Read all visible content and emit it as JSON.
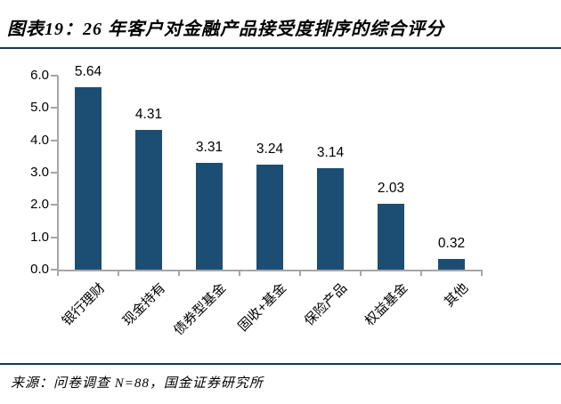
{
  "figure": {
    "title": "图表19：26 年客户对金融产品接受度排序的综合评分",
    "source": "来源：问卷调查 N=88，国金证券研究所"
  },
  "colors": {
    "bar": "#1C4E74",
    "rule": "#17375E",
    "axis": "#A6A6A6",
    "text": "#000000"
  },
  "chart_data": {
    "type": "bar",
    "title": "26 年客户对金融产品接受度排序的综合评分",
    "categories": [
      "银行理财",
      "现金持有",
      "债券型基金",
      "固收+基金",
      "保险产品",
      "权益基金",
      "其他"
    ],
    "values": [
      5.64,
      4.31,
      3.31,
      3.24,
      3.14,
      2.03,
      0.32
    ],
    "data_labels": [
      "5.64",
      "4.31",
      "3.31",
      "3.24",
      "3.14",
      "2.03",
      "0.32"
    ],
    "xlabel": "",
    "ylabel": "",
    "ylim": [
      0,
      6
    ],
    "ytick_step": 1.0,
    "ytick_labels": [
      "0.0",
      "1.0",
      "2.0",
      "3.0",
      "4.0",
      "5.0",
      "6.0"
    ],
    "grid": false,
    "legend": "none",
    "category_label_rotation_deg": 45
  }
}
